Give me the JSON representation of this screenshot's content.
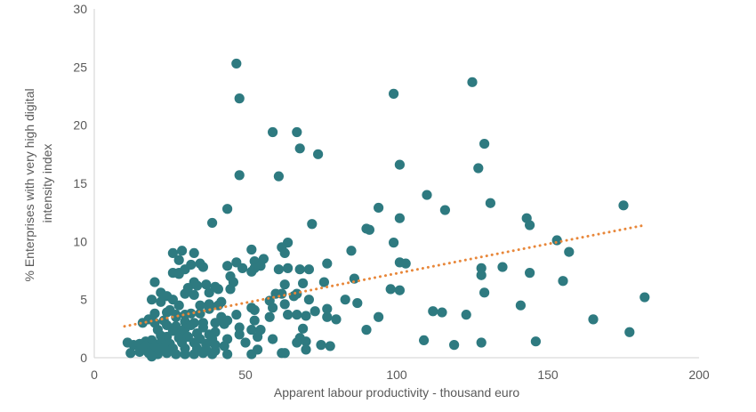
{
  "chart_data": {
    "type": "scatter",
    "xlabel": "Apparent labour productivity - thousand euro",
    "ylabel_lines": [
      "% Enterprises with very high digital",
      "intensity index"
    ],
    "xlim": [
      0,
      200
    ],
    "ylim": [
      0,
      30
    ],
    "x_ticks": [
      0,
      50,
      100,
      150,
      200
    ],
    "y_ticks": [
      0,
      5,
      10,
      15,
      20,
      25,
      30
    ],
    "x_tick_labels": [
      "0",
      "50",
      "100",
      "150",
      "200"
    ],
    "y_tick_labels": [
      "0",
      "5",
      "10",
      "15",
      "20",
      "25",
      "30"
    ],
    "grid": false,
    "legend": "none",
    "colors": {
      "points": "#2e7a80",
      "trendline": "#e8873a",
      "axis": "#d9d9d9",
      "text": "#595959"
    },
    "trendline": {
      "style": "dotted",
      "x": [
        10,
        182
      ],
      "y": [
        2.7,
        11.4
      ]
    },
    "points": [
      [
        47,
        25.3
      ],
      [
        48,
        22.3
      ],
      [
        59,
        19.4
      ],
      [
        67,
        19.4
      ],
      [
        61,
        15.6
      ],
      [
        68,
        18.0
      ],
      [
        74,
        17.5
      ],
      [
        48,
        15.7
      ],
      [
        44,
        12.8
      ],
      [
        39,
        11.6
      ],
      [
        99,
        22.7
      ],
      [
        125,
        23.7
      ],
      [
        129,
        18.4
      ],
      [
        127,
        16.3
      ],
      [
        101,
        16.6
      ],
      [
        110,
        14.0
      ],
      [
        116,
        12.7
      ],
      [
        94,
        12.9
      ],
      [
        101,
        12.0
      ],
      [
        90,
        11.1
      ],
      [
        91,
        11.0
      ],
      [
        72,
        11.5
      ],
      [
        131,
        13.3
      ],
      [
        143,
        12.0
      ],
      [
        144,
        11.4
      ],
      [
        175,
        13.1
      ],
      [
        153,
        10.1
      ],
      [
        157,
        9.1
      ],
      [
        144,
        7.3
      ],
      [
        135,
        7.8
      ],
      [
        128,
        7.7
      ],
      [
        128,
        7.1
      ],
      [
        129,
        5.6
      ],
      [
        155,
        6.6
      ],
      [
        99,
        9.9
      ],
      [
        101,
        8.2
      ],
      [
        103,
        8.1
      ],
      [
        85,
        9.2
      ],
      [
        86,
        6.8
      ],
      [
        83,
        5.0
      ],
      [
        87,
        4.7
      ],
      [
        98,
        5.9
      ],
      [
        101,
        5.8
      ],
      [
        94,
        3.5
      ],
      [
        90,
        2.4
      ],
      [
        182,
        5.2
      ],
      [
        165,
        3.3
      ],
      [
        177,
        2.2
      ],
      [
        146,
        1.4
      ],
      [
        141,
        4.5
      ],
      [
        123,
        3.7
      ],
      [
        112,
        4.0
      ],
      [
        115,
        3.9
      ],
      [
        109,
        1.5
      ],
      [
        119,
        1.1
      ],
      [
        128,
        1.3
      ],
      [
        64,
        9.9
      ],
      [
        62,
        9.5
      ],
      [
        63,
        9.0
      ],
      [
        56,
        8.5
      ],
      [
        52,
        9.3
      ],
      [
        53,
        8.3
      ],
      [
        53,
        7.7
      ],
      [
        52,
        7.4
      ],
      [
        55,
        7.9
      ],
      [
        47,
        8.2
      ],
      [
        49,
        7.7
      ],
      [
        44,
        7.9
      ],
      [
        45,
        7.0
      ],
      [
        46,
        6.5
      ],
      [
        68,
        7.6
      ],
      [
        61,
        7.6
      ],
      [
        64,
        7.7
      ],
      [
        63,
        6.3
      ],
      [
        69,
        6.4
      ],
      [
        77,
        8.1
      ],
      [
        76,
        6.5
      ],
      [
        71,
        7.6
      ],
      [
        62,
        5.5
      ],
      [
        63,
        4.6
      ],
      [
        66,
        5.3
      ],
      [
        67,
        5.5
      ],
      [
        71,
        5.0
      ],
      [
        60,
        5.5
      ],
      [
        73,
        4.0
      ],
      [
        67,
        3.7
      ],
      [
        64,
        3.7
      ],
      [
        58,
        3.5
      ],
      [
        77,
        4.2
      ],
      [
        77,
        3.5
      ],
      [
        80,
        3.3
      ],
      [
        70,
        3.6
      ],
      [
        69,
        2.5
      ],
      [
        68,
        1.7
      ],
      [
        67,
        1.3
      ],
      [
        70,
        1.4
      ],
      [
        75,
        1.1
      ],
      [
        78,
        1.0
      ],
      [
        70,
        0.7
      ],
      [
        62,
        0.4
      ],
      [
        63,
        0.4
      ],
      [
        59,
        1.6
      ],
      [
        52,
        4.3
      ],
      [
        53,
        4.1
      ],
      [
        53,
        3.2
      ],
      [
        52,
        2.4
      ],
      [
        55,
        2.4
      ],
      [
        54,
        1.8
      ],
      [
        48,
        2.0
      ],
      [
        50,
        1.3
      ],
      [
        54,
        0.7
      ],
      [
        52,
        0.3
      ],
      [
        43,
        2.9
      ],
      [
        44,
        1.6
      ],
      [
        43,
        1.0
      ],
      [
        44,
        0.3
      ],
      [
        33,
        9.0
      ],
      [
        29,
        9.2
      ],
      [
        26,
        9.0
      ],
      [
        28,
        8.4
      ],
      [
        32,
        8.0
      ],
      [
        35,
        8.1
      ],
      [
        36,
        7.8
      ],
      [
        26,
        7.3
      ],
      [
        28,
        7.3
      ],
      [
        30,
        7.6
      ],
      [
        28,
        7.2
      ],
      [
        33,
        6.5
      ],
      [
        37,
        6.3
      ],
      [
        34,
        6.2
      ],
      [
        31,
        6.0
      ],
      [
        40,
        6.1
      ],
      [
        41,
        5.9
      ],
      [
        30,
        5.5
      ],
      [
        38,
        5.6
      ],
      [
        33,
        5.4
      ],
      [
        24,
        5.3
      ],
      [
        22,
        5.6
      ],
      [
        20,
        6.5
      ],
      [
        19,
        5.0
      ],
      [
        22,
        4.8
      ],
      [
        26,
        5.0
      ],
      [
        28,
        4.5
      ],
      [
        35,
        4.5
      ],
      [
        38,
        4.6
      ],
      [
        42,
        4.8
      ],
      [
        41,
        4.5
      ],
      [
        38,
        4.2
      ],
      [
        42,
        3.5
      ],
      [
        35,
        3.8
      ],
      [
        32,
        3.8
      ],
      [
        30,
        3.7
      ],
      [
        27,
        3.7
      ],
      [
        25,
        4.1
      ],
      [
        24,
        3.9
      ],
      [
        20,
        3.8
      ],
      [
        18,
        3.3
      ],
      [
        16,
        3.0
      ],
      [
        20,
        3.0
      ],
      [
        23,
        3.2
      ],
      [
        27,
        3.5
      ],
      [
        30,
        3.1
      ],
      [
        33,
        3.0
      ],
      [
        36,
        3.0
      ],
      [
        40,
        3.0
      ],
      [
        44,
        3.2
      ],
      [
        24,
        2.8
      ],
      [
        27,
        2.7
      ],
      [
        30,
        2.5
      ],
      [
        32,
        2.8
      ],
      [
        36,
        2.6
      ],
      [
        40,
        2.2
      ],
      [
        21,
        2.4
      ],
      [
        26,
        2.3
      ],
      [
        29,
        2.2
      ],
      [
        34,
        2.1
      ],
      [
        38,
        2.0
      ],
      [
        22,
        1.9
      ],
      [
        24,
        1.8
      ],
      [
        28,
        1.7
      ],
      [
        31,
        1.8
      ],
      [
        35,
        1.6
      ],
      [
        39,
        1.6
      ],
      [
        17,
        1.4
      ],
      [
        19,
        1.5
      ],
      [
        22,
        1.3
      ],
      [
        25,
        1.2
      ],
      [
        29,
        1.3
      ],
      [
        33,
        1.3
      ],
      [
        37,
        1.2
      ],
      [
        40,
        1.1
      ],
      [
        11,
        1.3
      ],
      [
        13,
        1.1
      ],
      [
        15,
        1.2
      ],
      [
        17,
        1.0
      ],
      [
        20,
        0.9
      ],
      [
        23,
        0.8
      ],
      [
        26,
        0.8
      ],
      [
        30,
        0.8
      ],
      [
        34,
        0.8
      ],
      [
        37,
        0.7
      ],
      [
        40,
        0.6
      ],
      [
        12,
        0.4
      ],
      [
        15,
        0.5
      ],
      [
        18,
        0.4
      ],
      [
        21,
        0.3
      ],
      [
        24,
        0.4
      ],
      [
        27,
        0.3
      ],
      [
        30,
        0.3
      ],
      [
        33,
        0.3
      ],
      [
        36,
        0.4
      ],
      [
        39,
        0.3
      ],
      [
        19,
        0.1
      ],
      [
        45,
        5.9
      ],
      [
        58,
        4.9
      ],
      [
        59,
        4.3
      ],
      [
        47,
        3.7
      ],
      [
        48,
        2.6
      ]
    ]
  }
}
